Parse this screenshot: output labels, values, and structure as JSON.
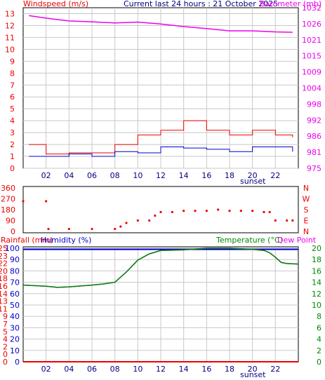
{
  "header": {
    "left_title": "Windspeed (m/s)",
    "center_title": "Current last 24 hours : 21 October 2025",
    "right_title": "Barometer (mb)"
  },
  "colors": {
    "wind": "#ee0000",
    "gust": "#0000cc",
    "baro": "#ee00ee",
    "dir": "#ee0000",
    "rain": "#ee0000",
    "hum": "#0000cc",
    "temp": "#008800",
    "dew": "#ee00ee",
    "grid": "#c8c8c8",
    "axis_left": "#ee0000",
    "axis_right": "#ee00ee"
  },
  "x_ticks": [
    "02",
    "04",
    "06",
    "08",
    "10",
    "12",
    "14",
    "16",
    "18",
    "20",
    "22"
  ],
  "sunset_label": "sunset",
  "chart_data": [
    {
      "type": "line",
      "name": "wind_baro",
      "left_axis": {
        "title": "Windspeed (m/s)",
        "ticks": [
          "0",
          "1",
          "2",
          "3",
          "4",
          "5",
          "6",
          "7",
          "8",
          "9",
          "10",
          "11",
          "12",
          "13"
        ],
        "ylim": [
          0,
          13.5
        ]
      },
      "right_axis": {
        "title": "Barometer (mb)",
        "ticks": [
          "975",
          "981",
          "986",
          "992",
          "998",
          "1004",
          "1009",
          "1015",
          "1021",
          "1026",
          "1032"
        ],
        "ylim": [
          975,
          1032
        ]
      },
      "x": [
        0.5,
        2,
        4,
        6,
        8,
        10,
        12,
        14,
        16,
        18,
        20,
        22,
        23.5
      ],
      "series": [
        {
          "key": "windspeed",
          "axis": "left",
          "values": [
            1.0,
            1.0,
            1.2,
            1.0,
            1.4,
            1.3,
            1.8,
            1.7,
            1.6,
            1.4,
            1.8,
            1.8,
            1.4
          ]
        },
        {
          "key": "gust",
          "axis": "left",
          "values": [
            2.0,
            1.2,
            1.3,
            1.3,
            2.0,
            2.8,
            3.2,
            4.0,
            3.2,
            2.8,
            3.2,
            2.8,
            2.6
          ]
        },
        {
          "key": "barometer",
          "axis": "right",
          "values": [
            1029.2,
            1028.3,
            1027.3,
            1027.0,
            1026.6,
            1026.9,
            1026.2,
            1025.3,
            1024.6,
            1023.8,
            1023.8,
            1023.4,
            1023.3
          ]
        }
      ]
    },
    {
      "type": "scatter",
      "name": "wind_direction",
      "left_axis": {
        "ticks": [
          "0",
          "90",
          "180",
          "270",
          "360"
        ],
        "ylim": [
          0,
          360
        ]
      },
      "right_axis": {
        "ticks": [
          "N",
          "E",
          "S",
          "W",
          "N"
        ]
      },
      "x": [
        0,
        2,
        2.2,
        4,
        6,
        8,
        8.5,
        9,
        10,
        11,
        11.5,
        12,
        13,
        14,
        15,
        16,
        17,
        18,
        19,
        20,
        21,
        21.5,
        22,
        23,
        23.5
      ],
      "values": [
        250,
        250,
        20,
        20,
        20,
        20,
        40,
        70,
        90,
        90,
        130,
        160,
        160,
        170,
        170,
        170,
        180,
        170,
        170,
        170,
        160,
        160,
        90,
        90,
        90
      ]
    },
    {
      "type": "line",
      "name": "rain_hum_temp",
      "left_axis": {
        "title": "Rainfall (mm)",
        "ticks": [
          "0",
          "0",
          "2",
          "4",
          "5",
          "7",
          "9",
          "11",
          "13",
          "14",
          "16",
          "18",
          "20",
          "22",
          "23",
          "25"
        ],
        "ylim": [
          0,
          25
        ]
      },
      "humidity_axis": {
        "title": "Humidity (%)",
        "ticks": [
          "0",
          "10",
          "20",
          "30",
          "40",
          "50",
          "60",
          "70",
          "80",
          "90",
          "100"
        ],
        "ylim": [
          0,
          100
        ]
      },
      "right_axis": {
        "title": "Temperature (°C)",
        "title2": "Dew Point",
        "ticks": [
          "0",
          "2",
          "4",
          "6",
          "8",
          "10",
          "12",
          "14",
          "16",
          "18",
          "20"
        ],
        "ylim": [
          0,
          20
        ]
      },
      "x": [
        0,
        2,
        3,
        4,
        6,
        7,
        8,
        9,
        10,
        11,
        12,
        14,
        16,
        18,
        20,
        21,
        21.5,
        22,
        22.5,
        23,
        24
      ],
      "series": [
        {
          "key": "rainfall",
          "axis": "left",
          "values": [
            0,
            0,
            0,
            0,
            0,
            0,
            0,
            0,
            0,
            0,
            0,
            0,
            0,
            0,
            0,
            0,
            0,
            0,
            0,
            0,
            0
          ]
        },
        {
          "key": "humidity",
          "axis": "humidity",
          "values": [
            99,
            99,
            99,
            99,
            99,
            99,
            99,
            99,
            99,
            99,
            99,
            99,
            99,
            99,
            99,
            99,
            99,
            99,
            99,
            99,
            99
          ]
        },
        {
          "key": "temperature",
          "axis": "right",
          "values": [
            13.5,
            13.3,
            13.1,
            13.2,
            13.5,
            13.7,
            14.0,
            15.8,
            17.9,
            19.0,
            19.6,
            19.7,
            20.0,
            20.0,
            19.8,
            19.6,
            19.2,
            18.4,
            17.5,
            17.3,
            17.2
          ]
        },
        {
          "key": "dewpoint",
          "axis": "right",
          "values": [
            13.5,
            13.3,
            13.1,
            13.2,
            13.5,
            13.7,
            14.0,
            15.8,
            17.9,
            19.0,
            19.6,
            19.7,
            20.0,
            20.0,
            19.8,
            19.6,
            19.2,
            18.4,
            17.5,
            17.3,
            17.2
          ]
        }
      ]
    }
  ]
}
